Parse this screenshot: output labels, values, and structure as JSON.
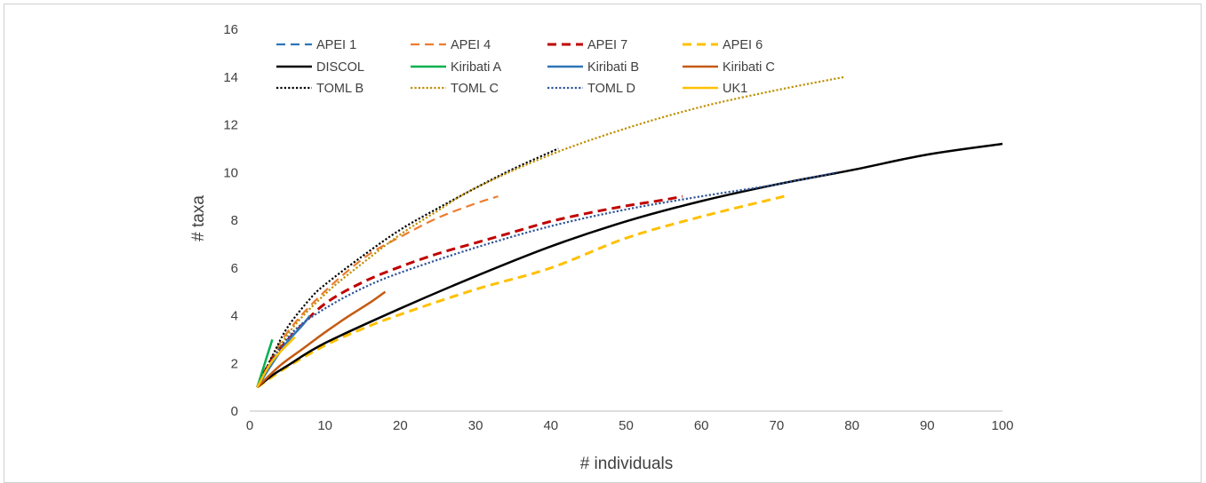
{
  "chart_data": {
    "type": "line",
    "xlabel": "# individuals",
    "ylabel": "# taxa",
    "xlim": [
      0,
      100
    ],
    "ylim": [
      0,
      16
    ],
    "xticks": [
      0,
      10,
      20,
      30,
      40,
      50,
      60,
      70,
      80,
      90,
      100
    ],
    "yticks": [
      0,
      2,
      4,
      6,
      8,
      10,
      12,
      14,
      16
    ],
    "grid": false,
    "legend_position": "top-left, inside plot, 4 columns",
    "series": [
      {
        "name": "APEI 1",
        "color": "#2e75b6",
        "dash": "dashed",
        "width": 2.2,
        "points": [
          [
            1,
            1
          ],
          [
            2,
            1.7
          ],
          [
            3,
            2.2
          ],
          [
            4,
            2.7
          ]
        ]
      },
      {
        "name": "APEI 4",
        "color": "#ed7d31",
        "dash": "dashed",
        "width": 2.2,
        "points": [
          [
            1,
            1
          ],
          [
            3,
            2.3
          ],
          [
            5,
            3.3
          ],
          [
            8,
            4.4
          ],
          [
            12,
            5.6
          ],
          [
            16,
            6.6
          ],
          [
            20,
            7.3
          ],
          [
            25,
            8.1
          ],
          [
            30,
            8.7
          ],
          [
            33,
            9
          ]
        ]
      },
      {
        "name": "APEI 7",
        "color": "#c00000",
        "dash": "dashed",
        "width": 3,
        "points": [
          [
            1,
            1
          ],
          [
            3,
            2.2
          ],
          [
            6,
            3.3
          ],
          [
            10,
            4.5
          ],
          [
            15,
            5.4
          ],
          [
            20,
            6.05
          ],
          [
            25,
            6.6
          ],
          [
            30,
            7.05
          ],
          [
            35,
            7.5
          ],
          [
            40,
            7.95
          ],
          [
            45,
            8.3
          ],
          [
            50,
            8.6
          ],
          [
            55,
            8.85
          ],
          [
            57.5,
            9
          ]
        ]
      },
      {
        "name": "APEI 6",
        "color": "#ffc000",
        "dash": "dashed",
        "width": 3,
        "points": [
          [
            1,
            1
          ],
          [
            5,
            1.85
          ],
          [
            10,
            2.75
          ],
          [
            15,
            3.45
          ],
          [
            20,
            4.05
          ],
          [
            30,
            5.1
          ],
          [
            40,
            6.0
          ],
          [
            50,
            7.25
          ],
          [
            60,
            8.15
          ],
          [
            71,
            9
          ]
        ]
      },
      {
        "name": "DISCOL",
        "color": "#000000",
        "dash": "solid",
        "width": 2.5,
        "points": [
          [
            1,
            1
          ],
          [
            3,
            1.5
          ],
          [
            5,
            1.9
          ],
          [
            10,
            2.85
          ],
          [
            20,
            4.3
          ],
          [
            30,
            5.65
          ],
          [
            40,
            6.9
          ],
          [
            50,
            7.95
          ],
          [
            60,
            8.8
          ],
          [
            70,
            9.5
          ],
          [
            80,
            10.1
          ],
          [
            90,
            10.75
          ],
          [
            100,
            11.2
          ]
        ]
      },
      {
        "name": "Kiribati A",
        "color": "#00b050",
        "dash": "solid",
        "width": 2.5,
        "points": [
          [
            1,
            1
          ],
          [
            2,
            2
          ],
          [
            3,
            3
          ]
        ]
      },
      {
        "name": "Kiribati B",
        "color": "#2e75b6",
        "dash": "solid",
        "width": 2.5,
        "points": [
          [
            1,
            1
          ],
          [
            3,
            2
          ],
          [
            5,
            2.9
          ],
          [
            7,
            3.6
          ],
          [
            8,
            4
          ]
        ]
      },
      {
        "name": "Kiribati C",
        "color": "#c55a11",
        "dash": "solid",
        "width": 2.5,
        "points": [
          [
            1,
            1
          ],
          [
            4,
            1.9
          ],
          [
            7,
            2.6
          ],
          [
            10,
            3.3
          ],
          [
            13,
            3.95
          ],
          [
            16,
            4.55
          ],
          [
            18,
            5
          ]
        ]
      },
      {
        "name": "TOML B",
        "color": "#000000",
        "dash": "dotted",
        "width": 2.2,
        "points": [
          [
            1,
            1
          ],
          [
            3,
            2.3
          ],
          [
            5,
            3.5
          ],
          [
            8,
            4.7
          ],
          [
            10,
            5.3
          ],
          [
            15,
            6.5
          ],
          [
            20,
            7.6
          ],
          [
            25,
            8.5
          ],
          [
            30,
            9.35
          ],
          [
            35,
            10.15
          ],
          [
            41,
            11
          ]
        ]
      },
      {
        "name": "TOML C",
        "color": "#bf8f00",
        "dash": "dotted",
        "width": 2.2,
        "points": [
          [
            1,
            1
          ],
          [
            5,
            3.2
          ],
          [
            10,
            4.9
          ],
          [
            15,
            6.2
          ],
          [
            20,
            7.4
          ],
          [
            25,
            8.4
          ],
          [
            30,
            9.35
          ],
          [
            40,
            10.75
          ],
          [
            50,
            11.85
          ],
          [
            60,
            12.75
          ],
          [
            70,
            13.45
          ],
          [
            79,
            14
          ]
        ]
      },
      {
        "name": "TOML D",
        "color": "#2f5597",
        "dash": "dotted",
        "width": 2.2,
        "points": [
          [
            1,
            1
          ],
          [
            3,
            2.15
          ],
          [
            6,
            3.4
          ],
          [
            10,
            4.3
          ],
          [
            15,
            5.15
          ],
          [
            20,
            5.8
          ],
          [
            30,
            6.85
          ],
          [
            40,
            7.75
          ],
          [
            50,
            8.45
          ],
          [
            60,
            9.0
          ],
          [
            70,
            9.5
          ],
          [
            78,
            10
          ]
        ]
      },
      {
        "name": "UK1",
        "color": "#ffc000",
        "dash": "solid",
        "width": 2.5,
        "points": [
          [
            1,
            1
          ],
          [
            3,
            2.1
          ],
          [
            6,
            3.1
          ]
        ]
      }
    ]
  }
}
